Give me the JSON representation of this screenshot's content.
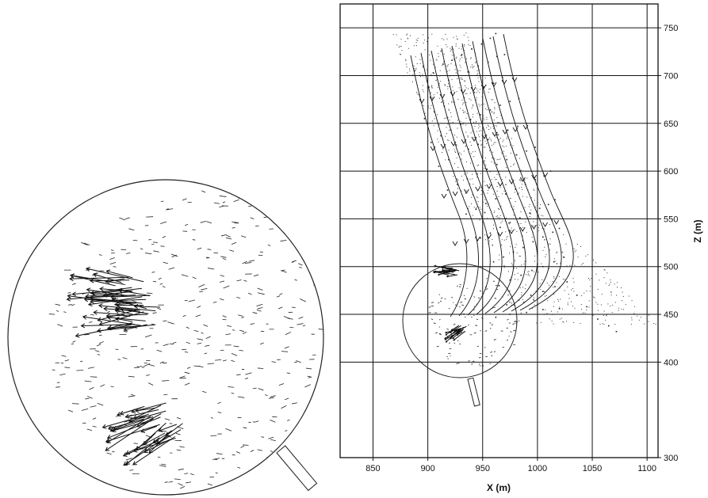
{
  "chart_data": {
    "type": "scatter",
    "xlabel": "X (m)",
    "ylabel": "Z (m)",
    "xlim": [
      820,
      1110
    ],
    "ylim": [
      300,
      775
    ],
    "x_ticks": [
      850,
      900,
      950,
      1000,
      1050,
      1100
    ],
    "y_ticks": [
      300,
      400,
      450,
      500,
      550,
      600,
      650,
      700,
      750
    ],
    "grid": true,
    "y_axis_side": "right",
    "series": [
      {
        "values": [
          {
            "x": 888,
            "z": 705
          },
          {
            "x": 896,
            "z": 710
          },
          {
            "x": 905,
            "z": 703
          },
          {
            "x": 914,
            "z": 712
          },
          {
            "x": 922,
            "z": 716
          },
          {
            "x": 931,
            "z": 722
          },
          {
            "x": 940,
            "z": 728
          },
          {
            "x": 949,
            "z": 733
          },
          {
            "x": 957,
            "z": 739
          },
          {
            "x": 962,
            "z": 744
          },
          {
            "x": 892,
            "z": 680
          },
          {
            "x": 901,
            "z": 688
          },
          {
            "x": 910,
            "z": 690
          },
          {
            "x": 919,
            "z": 695
          },
          {
            "x": 928,
            "z": 700
          },
          {
            "x": 937,
            "z": 704
          },
          {
            "x": 946,
            "z": 710
          },
          {
            "x": 955,
            "z": 714
          },
          {
            "x": 963,
            "z": 720
          },
          {
            "x": 970,
            "z": 722
          },
          {
            "x": 897,
            "z": 655
          },
          {
            "x": 906,
            "z": 662
          },
          {
            "x": 915,
            "z": 668
          },
          {
            "x": 924,
            "z": 672
          },
          {
            "x": 933,
            "z": 677
          },
          {
            "x": 942,
            "z": 682
          },
          {
            "x": 951,
            "z": 688
          },
          {
            "x": 960,
            "z": 692
          },
          {
            "x": 968,
            "z": 698
          },
          {
            "x": 976,
            "z": 700
          },
          {
            "x": 903,
            "z": 630
          },
          {
            "x": 912,
            "z": 637
          },
          {
            "x": 921,
            "z": 643
          },
          {
            "x": 930,
            "z": 649
          },
          {
            "x": 939,
            "z": 654
          },
          {
            "x": 948,
            "z": 659
          },
          {
            "x": 957,
            "z": 664
          },
          {
            "x": 966,
            "z": 669
          },
          {
            "x": 975,
            "z": 673
          },
          {
            "x": 983,
            "z": 676
          },
          {
            "x": 910,
            "z": 605
          },
          {
            "x": 919,
            "z": 612
          },
          {
            "x": 928,
            "z": 618
          },
          {
            "x": 937,
            "z": 623
          },
          {
            "x": 946,
            "z": 628
          },
          {
            "x": 955,
            "z": 633
          },
          {
            "x": 964,
            "z": 638
          },
          {
            "x": 973,
            "z": 643
          },
          {
            "x": 982,
            "z": 647
          },
          {
            "x": 990,
            "z": 650
          },
          {
            "x": 918,
            "z": 580
          },
          {
            "x": 927,
            "z": 586
          },
          {
            "x": 936,
            "z": 592
          },
          {
            "x": 945,
            "z": 597
          },
          {
            "x": 954,
            "z": 602
          },
          {
            "x": 963,
            "z": 607
          },
          {
            "x": 972,
            "z": 612
          },
          {
            "x": 981,
            "z": 617
          },
          {
            "x": 990,
            "z": 621
          },
          {
            "x": 998,
            "z": 625
          },
          {
            "x": 935,
            "z": 555
          },
          {
            "x": 944,
            "z": 560
          },
          {
            "x": 953,
            "z": 566
          },
          {
            "x": 962,
            "z": 571
          },
          {
            "x": 971,
            "z": 576
          },
          {
            "x": 980,
            "z": 581
          },
          {
            "x": 989,
            "z": 586
          },
          {
            "x": 998,
            "z": 591
          },
          {
            "x": 1006,
            "z": 595
          },
          {
            "x": 1012,
            "z": 600
          },
          {
            "x": 948,
            "z": 530
          },
          {
            "x": 957,
            "z": 535
          },
          {
            "x": 966,
            "z": 541
          },
          {
            "x": 975,
            "z": 546
          },
          {
            "x": 984,
            "z": 551
          },
          {
            "x": 993,
            "z": 556
          },
          {
            "x": 1002,
            "z": 561
          },
          {
            "x": 1010,
            "z": 565
          },
          {
            "x": 1016,
            "z": 570
          },
          {
            "x": 960,
            "z": 505
          },
          {
            "x": 969,
            "z": 510
          },
          {
            "x": 978,
            "z": 515
          },
          {
            "x": 987,
            "z": 520
          },
          {
            "x": 996,
            "z": 526
          },
          {
            "x": 1005,
            "z": 531
          },
          {
            "x": 1014,
            "z": 536
          },
          {
            "x": 1020,
            "z": 540
          },
          {
            "x": 965,
            "z": 480
          },
          {
            "x": 975,
            "z": 486
          },
          {
            "x": 985,
            "z": 491
          },
          {
            "x": 995,
            "z": 496
          },
          {
            "x": 1005,
            "z": 500
          },
          {
            "x": 1015,
            "z": 505
          },
          {
            "x": 1024,
            "z": 510
          },
          {
            "x": 972,
            "z": 460
          },
          {
            "x": 983,
            "z": 465
          },
          {
            "x": 994,
            "z": 470
          },
          {
            "x": 1005,
            "z": 474
          },
          {
            "x": 1016,
            "z": 479
          },
          {
            "x": 1027,
            "z": 484
          },
          {
            "x": 1036,
            "z": 470
          },
          {
            "x": 1045,
            "z": 458
          },
          {
            "x": 1055,
            "z": 445
          },
          {
            "x": 1065,
            "z": 438
          },
          {
            "x": 1072,
            "z": 432
          },
          {
            "x": 962,
            "z": 447
          },
          {
            "x": 975,
            "z": 450
          },
          {
            "x": 990,
            "z": 452
          },
          {
            "x": 1005,
            "z": 455
          },
          {
            "x": 1020,
            "z": 456
          }
        ]
      }
    ]
  }
}
